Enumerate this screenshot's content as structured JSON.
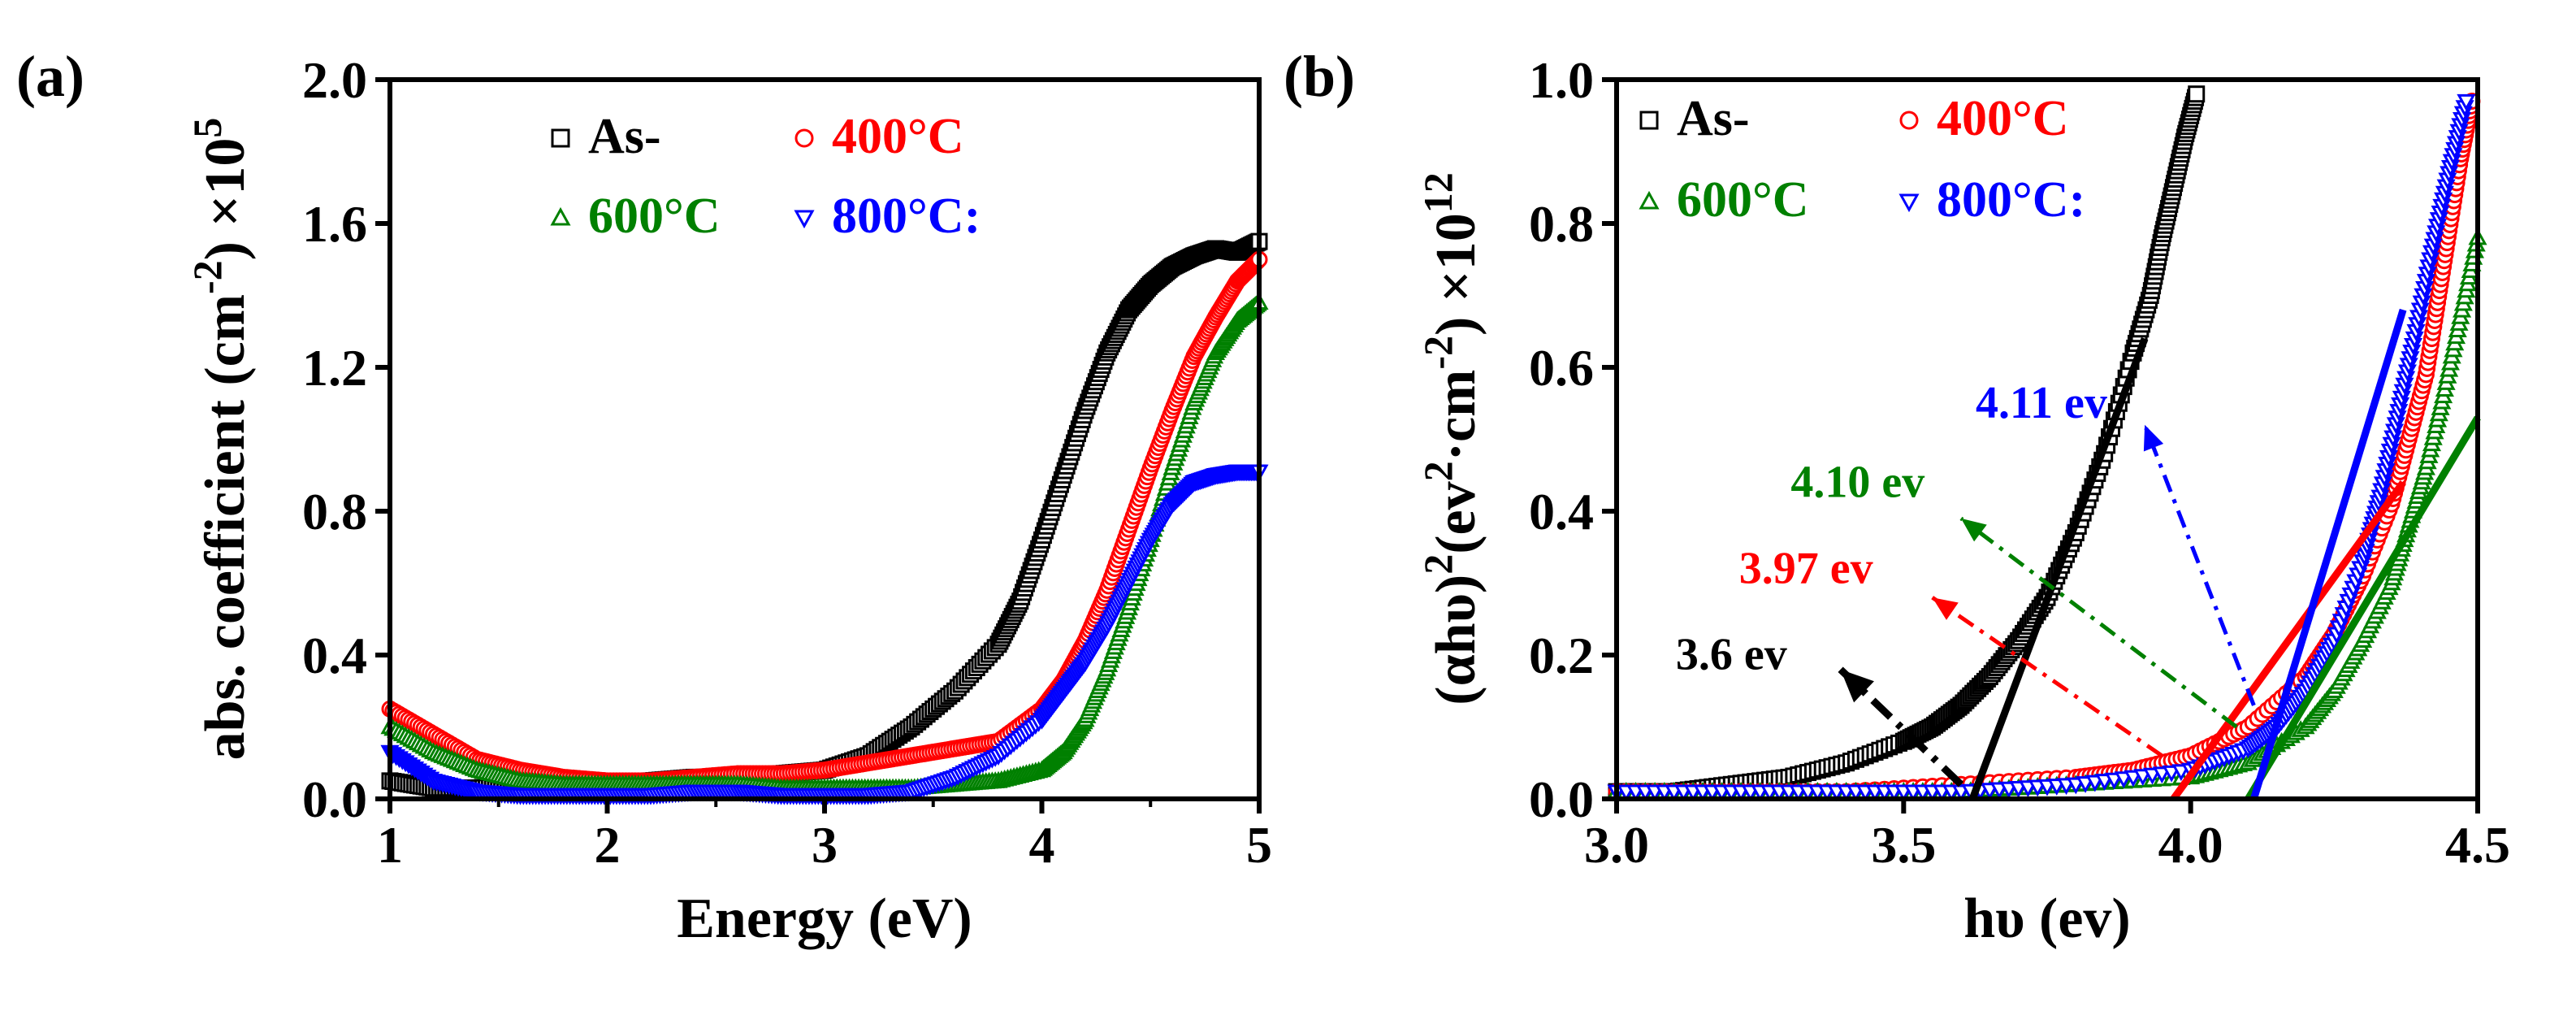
{
  "chart_data": [
    {
      "type": "scatter",
      "panel_label": "(a)",
      "xlabel": "Energy (eV)",
      "ylabel_main": "abs. coefficient (cm",
      "ylabel_sup1": "-2",
      "ylabel_mid": ") ×10",
      "ylabel_sup2": "5",
      "xlim": [
        1,
        5
      ],
      "ylim": [
        0,
        2.0
      ],
      "xticks": [
        1,
        2,
        3,
        4,
        5
      ],
      "xtick_labels": [
        "1",
        "2",
        "3",
        "4",
        "5"
      ],
      "yticks": [
        0,
        0.4,
        0.8,
        1.2,
        1.6,
        2.0
      ],
      "ytick_labels": [
        "0.0",
        "0.4",
        "0.8",
        "1.2",
        "1.6",
        "2.0"
      ],
      "legend": [
        {
          "label": "As-",
          "marker": "square",
          "color": "#000000"
        },
        {
          "label": "400°C",
          "marker": "circle",
          "color": "#ff0000"
        },
        {
          "label": "600°C",
          "marker": "triangle-up",
          "color": "#008000"
        },
        {
          "label": "800°C:",
          "marker": "triangle-down",
          "color": "#0000ff"
        }
      ],
      "series": [
        {
          "name": "As-",
          "color": "#000000",
          "marker": "square",
          "x": [
            1.0,
            1.2,
            1.4,
            1.6,
            1.8,
            2.0,
            2.2,
            2.4,
            2.6,
            2.8,
            3.0,
            3.2,
            3.4,
            3.6,
            3.8,
            3.9,
            4.0,
            4.1,
            4.2,
            4.3,
            4.4,
            4.5,
            4.6,
            4.7,
            4.8,
            4.9,
            5.0
          ],
          "y": [
            0.05,
            0.03,
            0.03,
            0.04,
            0.05,
            0.04,
            0.05,
            0.06,
            0.06,
            0.07,
            0.08,
            0.12,
            0.2,
            0.3,
            0.43,
            0.55,
            0.72,
            0.9,
            1.08,
            1.24,
            1.36,
            1.43,
            1.48,
            1.51,
            1.53,
            1.52,
            1.55
          ]
        },
        {
          "name": "400°C",
          "color": "#ff0000",
          "marker": "circle",
          "x": [
            1.0,
            1.2,
            1.4,
            1.6,
            1.8,
            2.0,
            2.2,
            2.4,
            2.6,
            2.8,
            3.0,
            3.2,
            3.4,
            3.6,
            3.8,
            4.0,
            4.1,
            4.2,
            4.3,
            4.4,
            4.5,
            4.6,
            4.7,
            4.8,
            4.9,
            5.0
          ],
          "y": [
            0.25,
            0.18,
            0.11,
            0.08,
            0.06,
            0.05,
            0.05,
            0.06,
            0.07,
            0.07,
            0.08,
            0.1,
            0.12,
            0.14,
            0.16,
            0.25,
            0.33,
            0.44,
            0.58,
            0.75,
            0.92,
            1.08,
            1.23,
            1.34,
            1.44,
            1.5
          ]
        },
        {
          "name": "600°C",
          "color": "#008000",
          "marker": "triangle-up",
          "x": [
            1.0,
            1.2,
            1.4,
            1.6,
            1.8,
            2.0,
            2.2,
            2.4,
            2.6,
            2.8,
            3.0,
            3.2,
            3.4,
            3.6,
            3.8,
            4.0,
            4.1,
            4.2,
            4.3,
            4.4,
            4.5,
            4.6,
            4.7,
            4.8,
            4.9,
            5.0
          ],
          "y": [
            0.2,
            0.13,
            0.08,
            0.05,
            0.04,
            0.04,
            0.04,
            0.04,
            0.04,
            0.03,
            0.03,
            0.03,
            0.03,
            0.04,
            0.05,
            0.08,
            0.13,
            0.22,
            0.36,
            0.53,
            0.72,
            0.92,
            1.1,
            1.24,
            1.33,
            1.38
          ]
        },
        {
          "name": "800°C:",
          "color": "#0000ff",
          "marker": "triangle-down",
          "x": [
            1.0,
            1.2,
            1.4,
            1.6,
            1.8,
            2.0,
            2.2,
            2.4,
            2.6,
            2.8,
            3.0,
            3.2,
            3.4,
            3.6,
            3.8,
            4.0,
            4.1,
            4.2,
            4.3,
            4.4,
            4.5,
            4.6,
            4.7,
            4.8,
            4.9,
            5.0
          ],
          "y": [
            0.13,
            0.05,
            0.02,
            0.01,
            0.01,
            0.01,
            0.01,
            0.02,
            0.02,
            0.01,
            0.01,
            0.01,
            0.02,
            0.06,
            0.12,
            0.22,
            0.3,
            0.38,
            0.48,
            0.6,
            0.72,
            0.82,
            0.88,
            0.9,
            0.91,
            0.91
          ]
        }
      ]
    },
    {
      "type": "scatter",
      "panel_label": "(b)",
      "xlabel": "hυ (ev)",
      "ylabel_main": "(αhυ)",
      "ylabel_sup1": "2",
      "ylabel_mid": "(ev",
      "ylabel_sup2": "2",
      "ylabel_mid2": "·cm",
      "ylabel_sup3": "-2",
      "ylabel_end": ") ×10",
      "ylabel_sup4": "12",
      "xlim": [
        3.0,
        4.5
      ],
      "ylim": [
        0,
        1.0
      ],
      "xticks": [
        3.0,
        3.5,
        4.0,
        4.5
      ],
      "xtick_labels": [
        "3.0",
        "3.5",
        "4.0",
        "4.5"
      ],
      "yticks": [
        0,
        0.2,
        0.4,
        0.6,
        0.8,
        1.0
      ],
      "ytick_labels": [
        "0.0",
        "0.2",
        "0.4",
        "0.6",
        "0.8",
        "1.0"
      ],
      "legend": [
        {
          "label": "As-",
          "marker": "square",
          "color": "#000000"
        },
        {
          "label": "400°C",
          "marker": "circle",
          "color": "#ff0000"
        },
        {
          "label": "600°C",
          "marker": "triangle-up",
          "color": "#008000"
        },
        {
          "label": "800°C:",
          "marker": "triangle-down",
          "color": "#0000ff"
        }
      ],
      "series": [
        {
          "name": "As-",
          "color": "#000000",
          "marker": "square",
          "x": [
            3.0,
            3.1,
            3.2,
            3.3,
            3.4,
            3.5,
            3.55,
            3.6,
            3.65,
            3.7,
            3.75,
            3.8,
            3.85,
            3.9,
            3.93,
            3.95,
            3.97,
            3.99,
            4.01
          ],
          "y": [
            0.01,
            0.01,
            0.02,
            0.03,
            0.05,
            0.08,
            0.1,
            0.13,
            0.17,
            0.22,
            0.28,
            0.37,
            0.48,
            0.62,
            0.7,
            0.78,
            0.85,
            0.92,
            0.98
          ]
        },
        {
          "name": "400°C",
          "color": "#ff0000",
          "marker": "circle",
          "x": [
            3.0,
            3.2,
            3.4,
            3.6,
            3.8,
            3.9,
            4.0,
            4.1,
            4.2,
            4.25,
            4.3,
            4.35,
            4.38,
            4.41,
            4.43,
            4.45,
            4.47,
            4.49
          ],
          "y": [
            0.01,
            0.01,
            0.01,
            0.02,
            0.03,
            0.04,
            0.06,
            0.1,
            0.17,
            0.23,
            0.31,
            0.41,
            0.5,
            0.59,
            0.69,
            0.79,
            0.89,
            0.97
          ]
        },
        {
          "name": "600°C",
          "color": "#008000",
          "marker": "triangle-up",
          "x": [
            3.0,
            3.2,
            3.4,
            3.6,
            3.8,
            4.0,
            4.1,
            4.2,
            4.25,
            4.3,
            4.35,
            4.38,
            4.41,
            4.44,
            4.47,
            4.5
          ],
          "y": [
            0.01,
            0.01,
            0.01,
            0.01,
            0.02,
            0.03,
            0.05,
            0.1,
            0.15,
            0.22,
            0.3,
            0.38,
            0.46,
            0.56,
            0.67,
            0.78
          ]
        },
        {
          "name": "800°C:",
          "color": "#0000ff",
          "marker": "triangle-down",
          "x": [
            3.0,
            3.2,
            3.4,
            3.6,
            3.8,
            4.0,
            4.1,
            4.15,
            4.2,
            4.25,
            4.3,
            4.33,
            4.36,
            4.39,
            4.42,
            4.45,
            4.48
          ],
          "y": [
            0.01,
            0.01,
            0.01,
            0.01,
            0.02,
            0.04,
            0.07,
            0.1,
            0.15,
            0.22,
            0.33,
            0.42,
            0.53,
            0.64,
            0.76,
            0.87,
            0.97
          ]
        }
      ],
      "fit_lines": [
        {
          "name": "As- fit",
          "color": "#000000",
          "x": [
            3.62,
            3.92
          ],
          "y": [
            0.0,
            0.64
          ]
        },
        {
          "name": "400°C fit",
          "color": "#ff0000",
          "x": [
            3.97,
            4.37
          ],
          "y": [
            0.0,
            0.44
          ]
        },
        {
          "name": "600°C fit",
          "color": "#008000",
          "x": [
            4.1,
            4.5
          ],
          "y": [
            0.0,
            0.53
          ]
        },
        {
          "name": "800°C fit",
          "color": "#0000ff",
          "x": [
            4.11,
            4.37
          ],
          "y": [
            0.0,
            0.68
          ]
        }
      ],
      "annotations": [
        {
          "text": "3.6 ev",
          "color": "#000000",
          "line_style": "dashdot-thick",
          "from": [
            3.6,
            0.02
          ],
          "to": [
            3.39,
            0.18
          ],
          "label_at": [
            3.2,
            0.18
          ]
        },
        {
          "text": "3.97 ev",
          "color": "#ff0000",
          "line_style": "dashdot",
          "from": [
            3.95,
            0.06
          ],
          "to": [
            3.55,
            0.28
          ],
          "label_at": [
            3.33,
            0.3
          ]
        },
        {
          "text": "4.10 ev",
          "color": "#008000",
          "line_style": "dashdot",
          "from": [
            4.08,
            0.1
          ],
          "to": [
            3.6,
            0.39
          ],
          "label_at": [
            3.42,
            0.42
          ]
        },
        {
          "text": "4.11 ev",
          "color": "#0000ff",
          "line_style": "dashdot",
          "from": [
            4.11,
            0.13
          ],
          "to": [
            3.92,
            0.52
          ],
          "label_at": [
            3.74,
            0.53
          ]
        }
      ]
    }
  ]
}
